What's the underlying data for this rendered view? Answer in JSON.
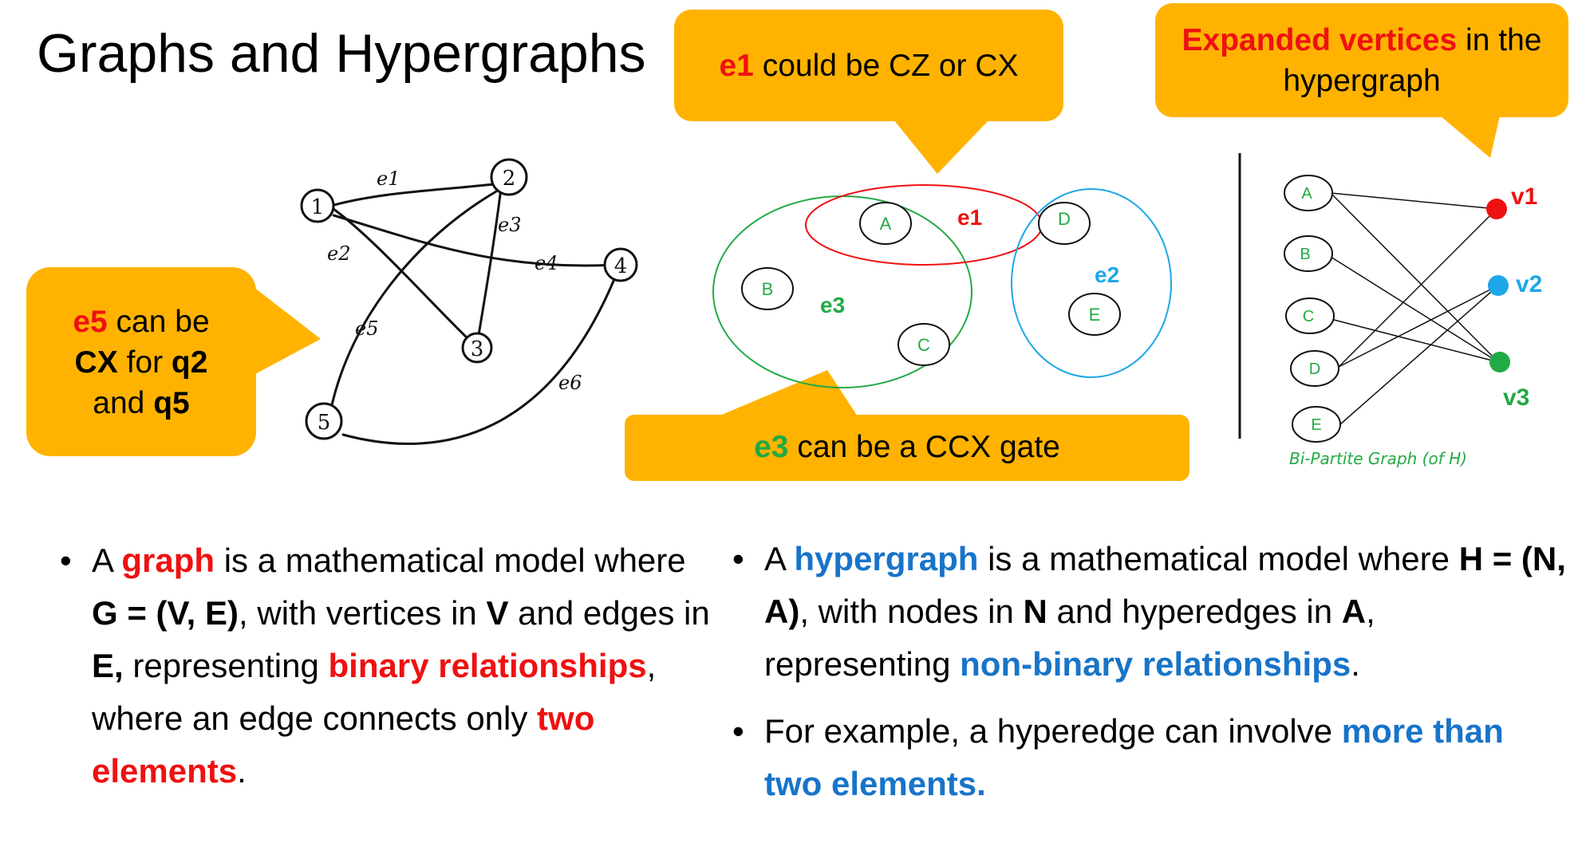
{
  "title": "Graphs and Hypergraphs",
  "colors": {
    "callout": "#ffb300",
    "red": "#ee1111",
    "green": "#22aa44",
    "blue": "#1874c9",
    "cyan": "#1ea7e8"
  },
  "callouts": {
    "e1": {
      "tag": "e1",
      "text": " could be CZ or CX"
    },
    "expanded": {
      "tag": "Expanded vertices",
      "text_line1": " in the",
      "text_line2": "hypergraph"
    },
    "e5": {
      "tag": "e5",
      "t1": " can be",
      "cx": "CX",
      "for": " for ",
      "q2": "q2",
      "and": "and ",
      "q5": "q5"
    },
    "e3": {
      "tag": "e3",
      "text": " can be a CCX gate"
    }
  },
  "graph": {
    "nodes": [
      "1",
      "2",
      "3",
      "4",
      "5"
    ],
    "edges": [
      "e1",
      "e2",
      "e3",
      "e4",
      "e5",
      "e6"
    ]
  },
  "hypergraph": {
    "nodes": [
      "A",
      "B",
      "C",
      "D",
      "E"
    ],
    "hyperedges": [
      "e1",
      "e2",
      "e3"
    ]
  },
  "bipartite": {
    "left": [
      "A",
      "B",
      "C",
      "D",
      "E"
    ],
    "right": [
      "v1",
      "v2",
      "v3"
    ],
    "caption": "Bi-Partite Graph (of H)"
  },
  "left_bullet": {
    "p1": "A ",
    "graph": "graph",
    "p2": " is a mathematical model where  ",
    "g": "G = (V, E)",
    "p3": ", with vertices in  ",
    "v": "V",
    "p4": " and edges in ",
    "e": "E,",
    "p5": " representing ",
    "binary": "binary relationships",
    "p6": ", where an edge connects only ",
    "two": "two elements",
    "p7": "."
  },
  "right_bullets": {
    "b1": {
      "p1": "A ",
      "hyper": "hypergraph",
      "p2": " is a mathematical model where ",
      "h": "H = (N, A)",
      "p3": ", with nodes in  ",
      "n": "N",
      "p4": "  and hyperedges in ",
      "a": "A",
      "p5": ", representing ",
      "nonbinary": "non-binary relationships",
      "p6": "."
    },
    "b2": {
      "p1": "For example, a hyperedge can involve ",
      "more": "more than two elements."
    }
  }
}
